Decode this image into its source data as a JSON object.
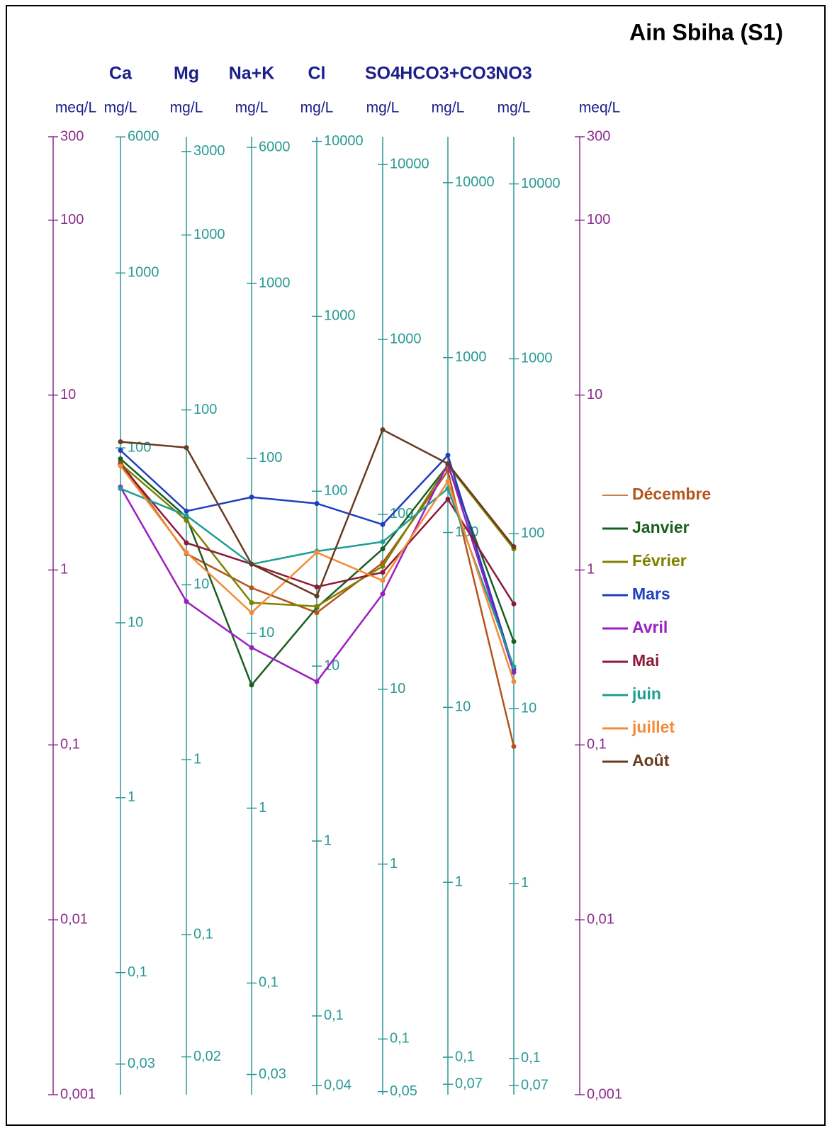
{
  "chart_data": {
    "type": "schoeller",
    "title": "Ain Sbiha (S1)",
    "meq_axis": {
      "unit": "meq/L",
      "ylim": [
        0.001,
        300
      ],
      "yticks": [
        300,
        100,
        10,
        1,
        {
          "value": 0.1,
          "label": "0,1"
        },
        {
          "value": 0.01,
          "label": "0,01"
        },
        {
          "value": 0.001,
          "label": "0,001"
        }
      ]
    },
    "parameters": [
      {
        "name": "Ca",
        "unit": "mg/L",
        "ylim": [
          0.02004,
          6012
        ],
        "yticks": [
          6000,
          1000,
          100,
          10,
          1,
          {
            "value": 0.1,
            "label": "0,1"
          },
          {
            "value": 0.03,
            "label": "0,03"
          }
        ]
      },
      {
        "name": "Mg",
        "unit": "mg/L",
        "ylim": [
          0.01215,
          3645
        ],
        "yticks": [
          3000,
          1000,
          100,
          10,
          1,
          {
            "value": 0.1,
            "label": "0,1"
          },
          {
            "value": 0.02,
            "label": "0,02"
          }
        ]
      },
      {
        "name": "Na+K",
        "unit": "mg/L",
        "ylim": [
          0.023,
          6900
        ],
        "yticks": [
          6000,
          1000,
          100,
          10,
          1,
          {
            "value": 0.1,
            "label": "0,1"
          },
          {
            "value": 0.03,
            "label": "0,03"
          }
        ]
      },
      {
        "name": "Cl",
        "unit": "mg/L",
        "ylim": [
          0.03545,
          10635
        ],
        "yticks": [
          10000,
          1000,
          100,
          10,
          1,
          {
            "value": 0.1,
            "label": "0,1"
          },
          {
            "value": 0.04,
            "label": "0,04"
          }
        ]
      },
      {
        "name": "SO4",
        "unit": "mg/L",
        "ylim": [
          0.04803,
          14409
        ],
        "yticks": [
          10000,
          1000,
          100,
          10,
          1,
          {
            "value": 0.1,
            "label": "0,1"
          },
          {
            "value": 0.05,
            "label": "0,05"
          }
        ]
      },
      {
        "name": "HCO3+CO3",
        "unit": "mg/L",
        "ylim": [
          0.06102,
          18306
        ],
        "yticks": [
          10000,
          1000,
          100,
          10,
          1,
          {
            "value": 0.1,
            "label": "0,1"
          },
          {
            "value": 0.07,
            "label": "0,07"
          }
        ]
      },
      {
        "name": "NO3",
        "unit": "mg/L",
        "ylim": [
          0.062,
          18600
        ],
        "yticks": [
          10000,
          1000,
          100,
          10,
          1,
          {
            "value": 0.1,
            "label": "0,1"
          },
          {
            "value": 0.07,
            "label": "0,07"
          }
        ]
      }
    ],
    "series": [
      {
        "name": "Décembre",
        "color": "#b5541c",
        "values": [
          4.16,
          1.24,
          0.79,
          0.57,
          1.1,
          3.69,
          0.098
        ]
      },
      {
        "name": "Janvier",
        "color": "#1a5e20",
        "values": [
          4.32,
          2.01,
          0.22,
          0.61,
          1.32,
          3.97,
          0.39
        ]
      },
      {
        "name": "Février",
        "color": "#808000",
        "values": [
          4.05,
          1.92,
          0.65,
          0.62,
          1.05,
          3.97,
          1.32
        ]
      },
      {
        "name": "Mars",
        "color": "#1f3fbf",
        "values": [
          4.83,
          2.17,
          2.61,
          2.4,
          1.82,
          4.53,
          0.27
        ]
      },
      {
        "name": "Avril",
        "color": "#9b1fbf",
        "values": [
          2.98,
          0.66,
          0.36,
          0.23,
          0.73,
          4.05,
          0.26
        ]
      },
      {
        "name": "Mai",
        "color": "#8b1a3a",
        "values": [
          4.01,
          1.43,
          1.08,
          0.8,
          0.97,
          2.54,
          0.64
        ]
      },
      {
        "name": "juin",
        "color": "#1e9e94",
        "values": [
          2.92,
          2.05,
          1.08,
          1.28,
          1.45,
          2.92,
          0.28
        ]
      },
      {
        "name": "juillet",
        "color": "#f28c38",
        "values": [
          3.94,
          1.26,
          0.57,
          1.26,
          0.87,
          3.21,
          0.23
        ]
      },
      {
        "name": "Août",
        "color": "#6b3a1f",
        "values": [
          5.41,
          5.01,
          1.08,
          0.71,
          6.34,
          4.05,
          1.36
        ]
      }
    ],
    "log_scale": true,
    "legend": "right"
  }
}
